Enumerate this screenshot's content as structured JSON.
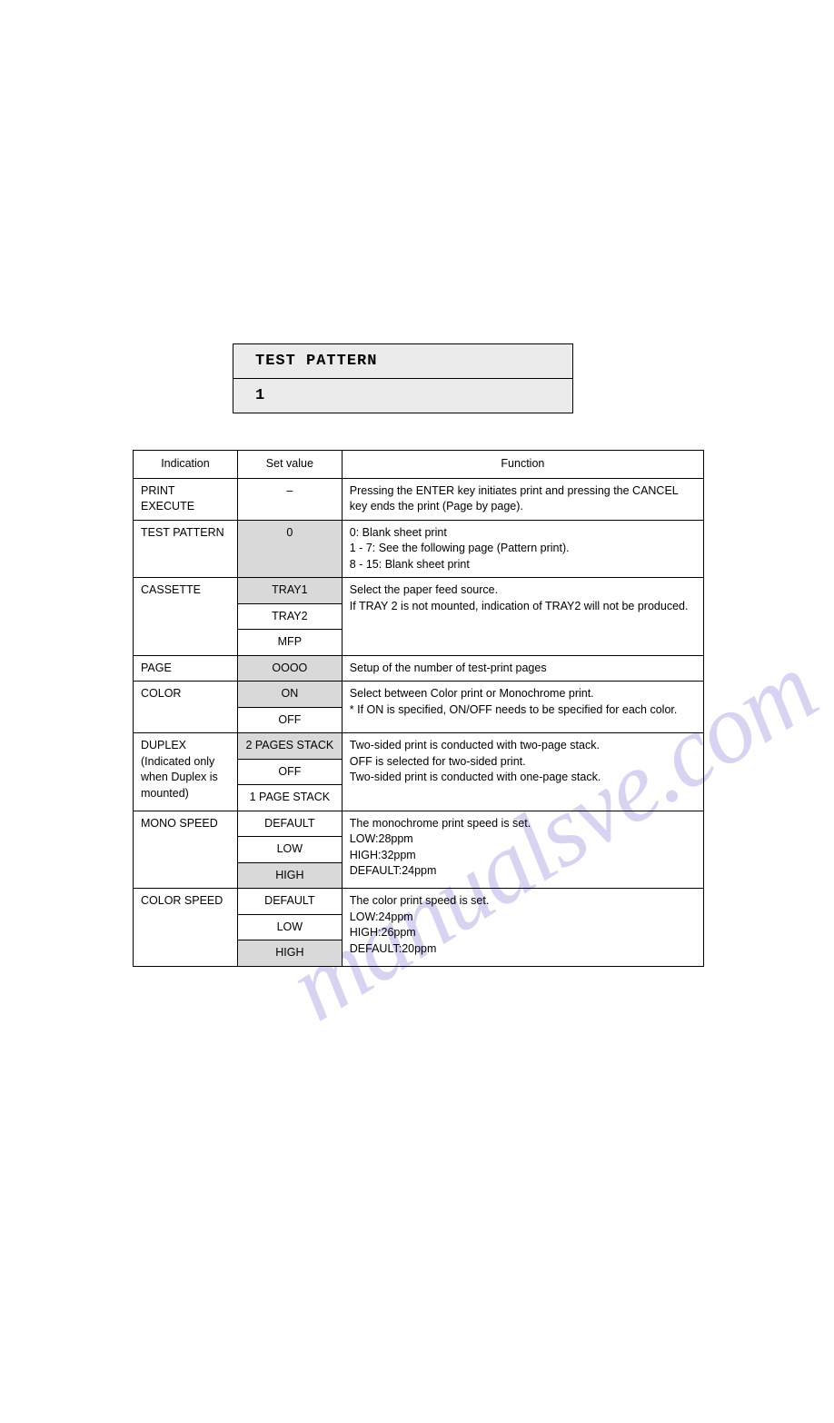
{
  "watermark": "manualsve.com",
  "display": {
    "title": "TEST PATTERN",
    "value": "1"
  },
  "table": {
    "headers": {
      "indication": "Indication",
      "setvalue": "Set value",
      "function": "Function"
    },
    "rows": {
      "print_execute": {
        "indication": "PRINT EXECUTE",
        "setvalue": "–",
        "function": "Pressing the ENTER key initiates print and pressing the CANCEL key ends the print (Page by page)."
      },
      "test_pattern": {
        "indication": "TEST PATTERN",
        "setvalue": "0",
        "function_line1": "0: Blank sheet print",
        "function_line2": "1 - 7: See the following page (Pattern print).",
        "function_line3": "8 - 15: Blank sheet print"
      },
      "cassette": {
        "indication": "CASSETTE",
        "setvalue1": "TRAY1",
        "setvalue2": "TRAY2",
        "setvalue3": "MFP",
        "function_line1": "Select the paper feed source.",
        "function_line2": "If TRAY 2 is not mounted, indication of TRAY2 will not be produced."
      },
      "page": {
        "indication": "PAGE",
        "setvalue": "OOOO",
        "function": "Setup of the number of test-print pages"
      },
      "color": {
        "indication": "COLOR",
        "setvalue1": "ON",
        "setvalue2": "OFF",
        "function_line1": "Select between Color print or Monochrome print.",
        "function_line2": "* If ON is specified, ON/OFF needs to be specified for each color."
      },
      "duplex": {
        "indication_line1": "DUPLEX",
        "indication_line2": "(Indicated only when Duplex is mounted)",
        "setvalue1": "2 PAGES STACK",
        "setvalue2": "OFF",
        "setvalue3": "1 PAGE STACK",
        "function_line1": "Two-sided print is conducted with two-page stack.",
        "function_line2": "OFF is selected for two-sided print.",
        "function_line3": "Two-sided print is conducted with one-page stack."
      },
      "mono_speed": {
        "indication": "MONO SPEED",
        "setvalue1": "DEFAULT",
        "setvalue2": "LOW",
        "setvalue3": "HIGH",
        "function_line1": "The monochrome print speed is set.",
        "function_line2": "LOW:28ppm",
        "function_line3": "HIGH:32ppm",
        "function_line4": "DEFAULT:24ppm"
      },
      "color_speed": {
        "indication": "COLOR SPEED",
        "setvalue1": "DEFAULT",
        "setvalue2": "LOW",
        "setvalue3": "HIGH",
        "function_line1": "The color print speed is set.",
        "function_line2": "LOW:24ppm",
        "function_line3": "HIGH:26ppm",
        "function_line4": "DEFAULT:20ppm"
      }
    }
  },
  "colors": {
    "background": "#ffffff",
    "text": "#000000",
    "border": "#000000",
    "shaded_cell": "#d9d9d9",
    "display_bg": "#ebebeb",
    "watermark": "#b8b0e6"
  }
}
